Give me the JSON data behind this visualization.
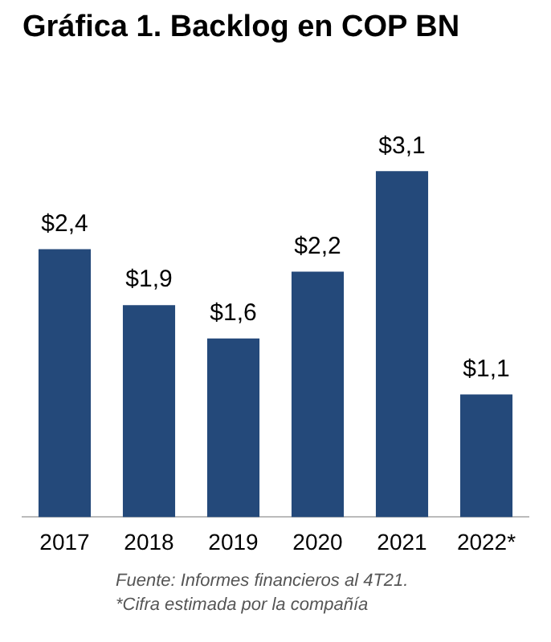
{
  "chart_data": {
    "type": "bar",
    "title": "Gráfica 1. Backlog en COP BN",
    "categories": [
      "2017",
      "2018",
      "2019",
      "2020",
      "2021",
      "2022*"
    ],
    "values": [
      2.4,
      1.9,
      1.6,
      2.2,
      3.1,
      1.1
    ],
    "value_labels": [
      "$2,4",
      "$1,9",
      "$1,6",
      "$2,2",
      "$3,1",
      "$1,1"
    ],
    "color": "#24497a",
    "annotations": [
      "Fuente: Informes financieros al 4T21.",
      "*Cifra estimada por la compañía"
    ]
  }
}
